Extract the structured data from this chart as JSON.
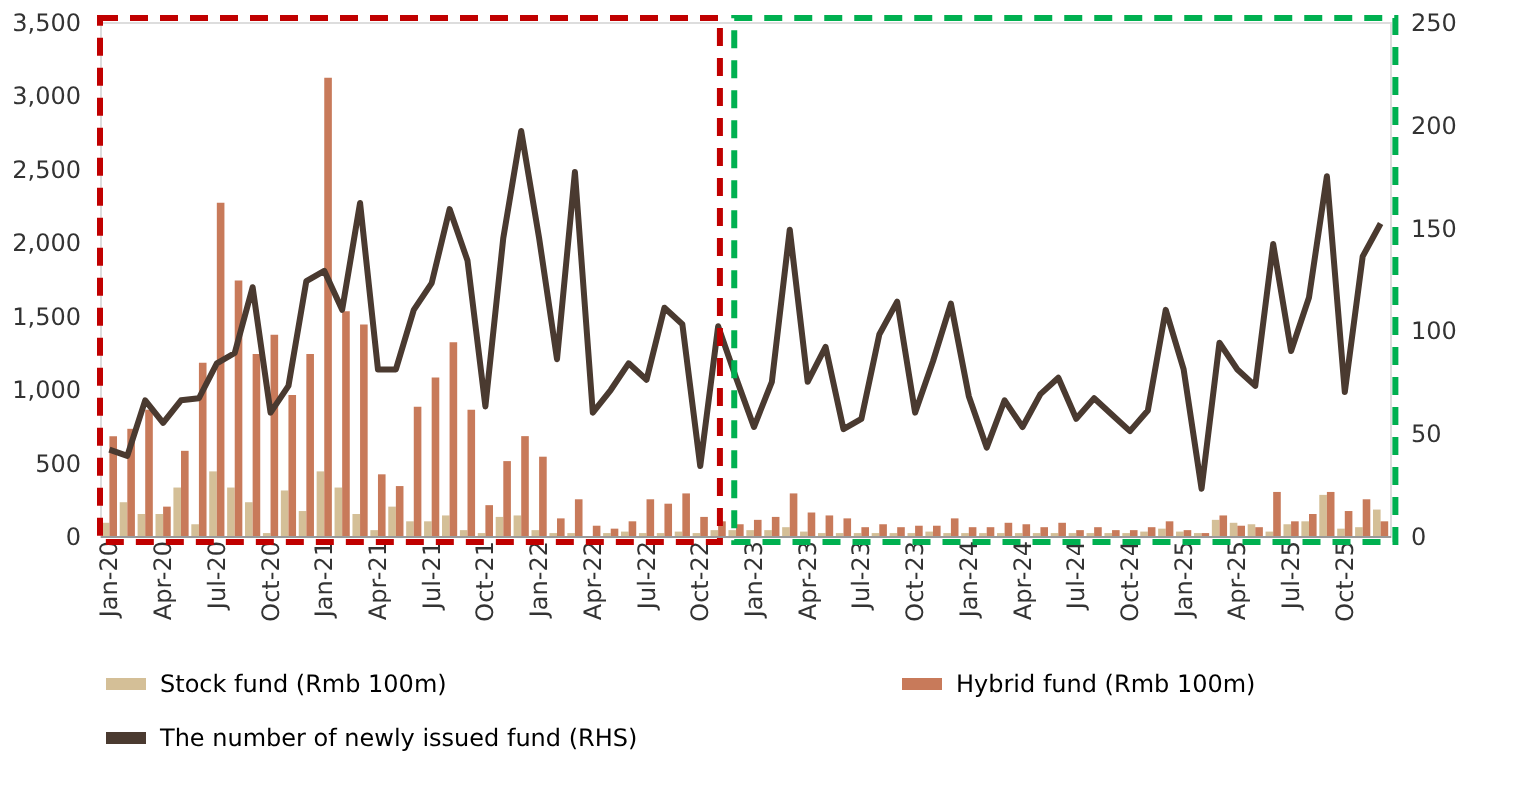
{
  "chart_data": {
    "type": "bar",
    "categories": [
      "Jan-20",
      null,
      null,
      "Apr-20",
      null,
      null,
      "Jul-20",
      null,
      null,
      "Oct-20",
      null,
      null,
      "Jan-21",
      null,
      null,
      "Apr-21",
      null,
      null,
      "Jul-21",
      null,
      null,
      "Oct-21",
      null,
      null,
      "Jan-22",
      null,
      null,
      "Apr-22",
      null,
      null,
      "Jul-22",
      null,
      null,
      "Oct-22",
      null,
      null,
      "Jan-23",
      null,
      null,
      "Apr-23",
      null,
      null,
      "Jul-23",
      null,
      null,
      "Oct-23",
      null,
      null,
      "Jan-24",
      null,
      null,
      "Apr-24",
      null,
      null,
      "Jul-24",
      null,
      null,
      "Oct-24",
      null,
      null,
      "Jan-25",
      null,
      null,
      "Apr-25",
      null,
      null,
      "Jul-25",
      null,
      null,
      "Oct-25",
      null,
      null
    ],
    "series": [
      {
        "name": "Stock fund (Rmb 100m)",
        "color": "#d4bf97",
        "values": [
          90,
          230,
          150,
          150,
          330,
          80,
          440,
          330,
          230,
          20,
          310,
          170,
          440,
          330,
          150,
          40,
          200,
          100,
          100,
          140,
          40,
          20,
          130,
          140,
          40,
          20,
          20,
          null,
          20,
          30,
          20,
          20,
          30,
          20,
          40,
          40,
          40,
          40,
          60,
          30,
          20,
          20,
          20,
          20,
          20,
          20,
          30,
          20,
          20,
          20,
          20,
          20,
          20,
          20,
          20,
          20,
          20,
          20,
          30,
          50,
          30,
          20,
          110,
          90,
          80,
          30,
          80,
          100,
          280,
          50,
          60,
          180
        ]
      },
      {
        "name": "Hybrid fund (Rmb 100m)",
        "color": "#c87a5a",
        "values": [
          680,
          730,
          860,
          200,
          580,
          1180,
          2270,
          1740,
          1240,
          1370,
          960,
          1240,
          3120,
          1530,
          1440,
          420,
          340,
          880,
          1080,
          1320,
          860,
          210,
          510,
          680,
          540,
          120,
          250,
          70,
          50,
          100,
          250,
          220,
          290,
          130,
          100,
          80,
          110,
          130,
          290,
          160,
          140,
          120,
          60,
          80,
          60,
          70,
          70,
          120,
          60,
          60,
          90,
          80,
          60,
          90,
          40,
          60,
          40,
          40,
          60,
          100,
          40,
          20,
          140,
          70,
          60,
          300,
          100,
          150,
          300,
          170,
          250,
          100
        ]
      },
      {
        "name": "The number of newly issued fund (RHS)",
        "color": "#4a3a30",
        "type": "line",
        "axis": "y2",
        "values": [
          42,
          39,
          66,
          55,
          66,
          67,
          84,
          89,
          121,
          60,
          73,
          124,
          129,
          110,
          162,
          81,
          81,
          110,
          123,
          159,
          134,
          63,
          145,
          197,
          145,
          86,
          177,
          60,
          71,
          84,
          76,
          111,
          103,
          34,
          102,
          77,
          53,
          75,
          149,
          75,
          92,
          52,
          57,
          98,
          114,
          60,
          85,
          113,
          68,
          43,
          66,
          53,
          69,
          77,
          57,
          67,
          59,
          51,
          61,
          110,
          81,
          23,
          94,
          81,
          73,
          142,
          90,
          116,
          175,
          70,
          136,
          152
        ]
      }
    ],
    "ylim": [
      0,
      3500
    ],
    "yticks": [
      0,
      {
        "value": 500,
        "label": "500"
      },
      {
        "value": 1000,
        "label": "1,000"
      },
      {
        "value": 1500,
        "label": "1,500"
      },
      {
        "value": 2000,
        "label": "2,000"
      },
      {
        "value": 2500,
        "label": "2,500"
      },
      {
        "value": 3000,
        "label": "3,000"
      },
      {
        "value": 3500,
        "label": "3,500"
      }
    ],
    "y2lim": [
      0,
      250
    ],
    "y2ticks": [
      0,
      50,
      100,
      150,
      200,
      250
    ],
    "grid": false,
    "legend": "bottom",
    "line_style": "solid",
    "marker": "none"
  }
}
